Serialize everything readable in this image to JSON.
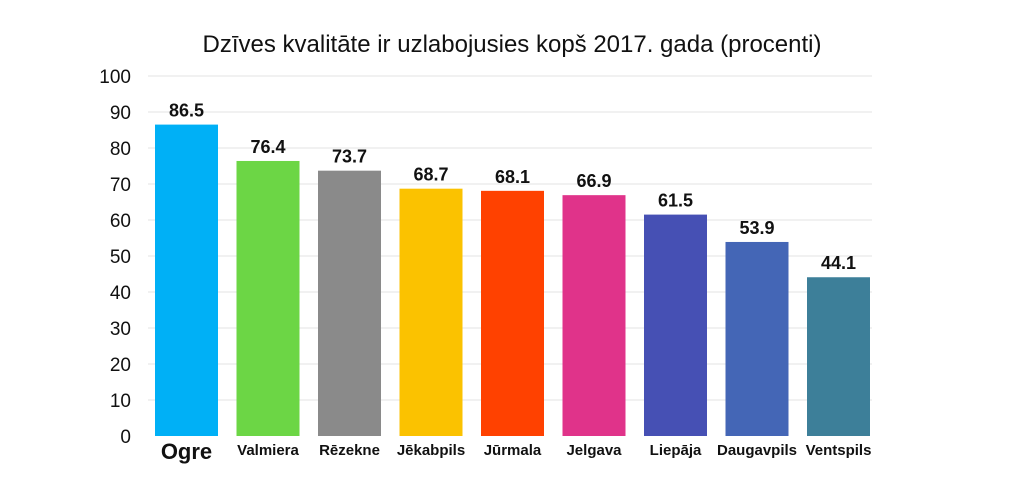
{
  "chart_data": {
    "type": "bar",
    "title": "Dzīves kvalitāte ir uzlabojusies kopš 2017. gada (procenti)",
    "xlabel": "",
    "ylabel": "",
    "ylim": [
      0,
      100
    ],
    "yticks": [
      0,
      10,
      20,
      30,
      40,
      50,
      60,
      70,
      80,
      90,
      100
    ],
    "grid": true,
    "categories": [
      "Ogre",
      "Valmiera",
      "Rēzekne",
      "Jēkabpils",
      "Jūrmala",
      "Jelgava",
      "Liepāja",
      "Daugavpils",
      "Ventspils"
    ],
    "values": [
      86.5,
      76.4,
      73.7,
      68.7,
      68.1,
      66.9,
      61.5,
      53.9,
      44.1
    ],
    "value_labels": [
      "86.5",
      "76.4",
      "73.7",
      "68.7",
      "68.1",
      "66.9",
      "61.5",
      "53.9",
      "44.1"
    ],
    "colors": [
      "#00b0f6",
      "#6cd645",
      "#8a8a8a",
      "#fbc200",
      "#ff4100",
      "#e0338a",
      "#4650b4",
      "#4466b6",
      "#3d7f99"
    ],
    "emphasized_category": "Ogre"
  }
}
